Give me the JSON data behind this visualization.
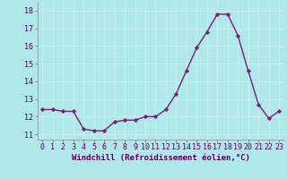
{
  "x": [
    0,
    1,
    2,
    3,
    4,
    5,
    6,
    7,
    8,
    9,
    10,
    11,
    12,
    13,
    14,
    15,
    16,
    17,
    18,
    19,
    20,
    21,
    22,
    23
  ],
  "y": [
    12.4,
    12.4,
    12.3,
    12.3,
    11.3,
    11.2,
    11.2,
    11.7,
    11.8,
    11.8,
    12.0,
    12.0,
    12.4,
    13.3,
    14.6,
    15.9,
    16.8,
    17.8,
    17.8,
    16.6,
    14.6,
    12.7,
    11.9,
    12.3
  ],
  "line_color": "#7b1d7b",
  "marker": "D",
  "marker_size": 2.2,
  "bg_color": "#aee8e8",
  "grid_color": "#c8f0f0",
  "xlabel": "Windchill (Refroidissement éolien,°C)",
  "yticks": [
    11,
    12,
    13,
    14,
    15,
    16,
    17,
    18
  ],
  "xticks": [
    0,
    1,
    2,
    3,
    4,
    5,
    6,
    7,
    8,
    9,
    10,
    11,
    12,
    13,
    14,
    15,
    16,
    17,
    18,
    19,
    20,
    21,
    22,
    23
  ],
  "ylim": [
    10.7,
    18.5
  ],
  "xlim": [
    -0.5,
    23.5
  ],
  "xlabel_fontsize": 6.5,
  "tick_fontsize": 6.0,
  "line_width": 1.0
}
